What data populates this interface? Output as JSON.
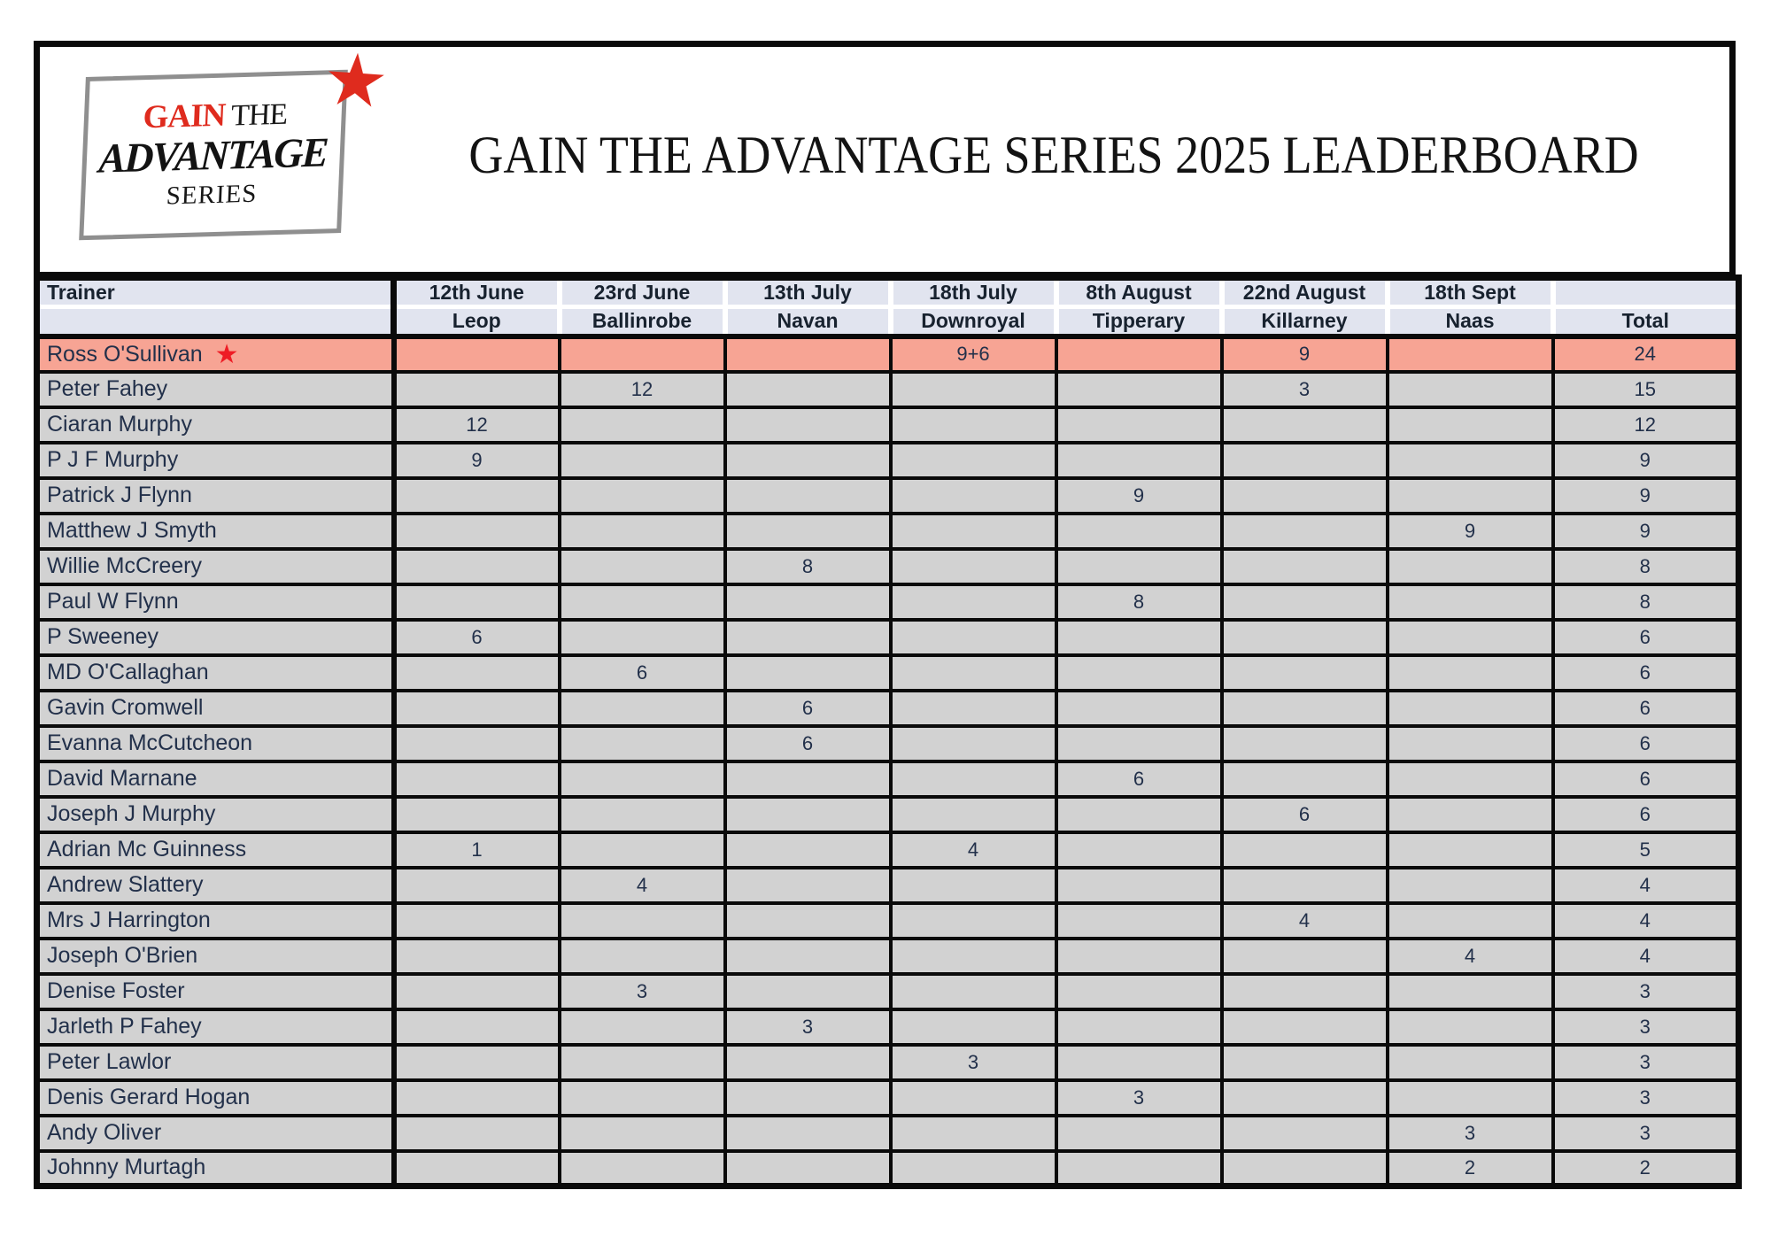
{
  "title": "GAIN THE ADVANTAGE SERIES 2025 LEADERBOARD",
  "logo": {
    "word1": "GAIN",
    "word2": " THE",
    "word3": "ADVANTAGE",
    "word4": "SERIES",
    "star": "★"
  },
  "colors": {
    "accent_red": "#df2b1e",
    "header_bg": "#e1e4ef",
    "row_bg": "#d2d2d2",
    "highlight_bg": "#f7a494",
    "border": "#0a0a0a",
    "text": "#22304a"
  },
  "table": {
    "trainer_header": "Trainer",
    "total_header": "Total",
    "races": [
      {
        "date": "12th June",
        "venue": "Leop"
      },
      {
        "date": "23rd June",
        "venue": "Ballinrobe"
      },
      {
        "date": "13th July",
        "venue": "Navan"
      },
      {
        "date": "18th July",
        "venue": "Downroyal"
      },
      {
        "date": "8th August",
        "venue": "Tipperary"
      },
      {
        "date": "22nd August",
        "venue": "Killarney"
      },
      {
        "date": "18th Sept",
        "venue": "Naas"
      }
    ],
    "rows": [
      {
        "name": "Ross O'Sullivan",
        "highlight": true,
        "star": "★",
        "points": [
          "",
          "",
          "",
          "9+6",
          "",
          "9",
          ""
        ],
        "total": "24"
      },
      {
        "name": "Peter Fahey",
        "highlight": false,
        "star": "",
        "points": [
          "",
          "12",
          "",
          "",
          "",
          "3",
          ""
        ],
        "total": "15"
      },
      {
        "name": "Ciaran Murphy",
        "highlight": false,
        "star": "",
        "points": [
          "12",
          "",
          "",
          "",
          "",
          "",
          ""
        ],
        "total": "12"
      },
      {
        "name": "P J F Murphy",
        "highlight": false,
        "star": "",
        "points": [
          "9",
          "",
          "",
          "",
          "",
          "",
          ""
        ],
        "total": "9"
      },
      {
        "name": "Patrick J Flynn",
        "highlight": false,
        "star": "",
        "points": [
          "",
          "",
          "",
          "",
          "9",
          "",
          ""
        ],
        "total": "9"
      },
      {
        "name": "Matthew J Smyth",
        "highlight": false,
        "star": "",
        "points": [
          "",
          "",
          "",
          "",
          "",
          "",
          "9"
        ],
        "total": "9"
      },
      {
        "name": "Willie McCreery",
        "highlight": false,
        "star": "",
        "points": [
          "",
          "",
          "8",
          "",
          "",
          "",
          ""
        ],
        "total": "8"
      },
      {
        "name": "Paul W Flynn",
        "highlight": false,
        "star": "",
        "points": [
          "",
          "",
          "",
          "",
          "8",
          "",
          ""
        ],
        "total": "8"
      },
      {
        "name": "P Sweeney",
        "highlight": false,
        "star": "",
        "points": [
          "6",
          "",
          "",
          "",
          "",
          "",
          ""
        ],
        "total": "6"
      },
      {
        "name": "MD O'Callaghan",
        "highlight": false,
        "star": "",
        "points": [
          "",
          "6",
          "",
          "",
          "",
          "",
          ""
        ],
        "total": "6"
      },
      {
        "name": "Gavin Cromwell",
        "highlight": false,
        "star": "",
        "points": [
          "",
          "",
          "6",
          "",
          "",
          "",
          ""
        ],
        "total": "6"
      },
      {
        "name": "Evanna McCutcheon",
        "highlight": false,
        "star": "",
        "points": [
          "",
          "",
          "6",
          "",
          "",
          "",
          ""
        ],
        "total": "6"
      },
      {
        "name": "David Marnane",
        "highlight": false,
        "star": "",
        "points": [
          "",
          "",
          "",
          "",
          "6",
          "",
          ""
        ],
        "total": "6"
      },
      {
        "name": "Joseph J Murphy",
        "highlight": false,
        "star": "",
        "points": [
          "",
          "",
          "",
          "",
          "",
          "6",
          ""
        ],
        "total": "6"
      },
      {
        "name": "Adrian Mc Guinness",
        "highlight": false,
        "star": "",
        "points": [
          "1",
          "",
          "",
          "4",
          "",
          "",
          ""
        ],
        "total": "5"
      },
      {
        "name": "Andrew Slattery",
        "highlight": false,
        "star": "",
        "points": [
          "",
          "4",
          "",
          "",
          "",
          "",
          ""
        ],
        "total": "4"
      },
      {
        "name": "Mrs J Harrington",
        "highlight": false,
        "star": "",
        "points": [
          "",
          "",
          "",
          "",
          "",
          "4",
          ""
        ],
        "total": "4"
      },
      {
        "name": "Joseph O'Brien",
        "highlight": false,
        "star": "",
        "points": [
          "",
          "",
          "",
          "",
          "",
          "",
          "4"
        ],
        "total": "4"
      },
      {
        "name": "Denise Foster",
        "highlight": false,
        "star": "",
        "points": [
          "",
          "3",
          "",
          "",
          "",
          "",
          ""
        ],
        "total": "3"
      },
      {
        "name": "Jarleth P Fahey",
        "highlight": false,
        "star": "",
        "points": [
          "",
          "",
          "3",
          "",
          "",
          "",
          ""
        ],
        "total": "3"
      },
      {
        "name": "Peter Lawlor",
        "highlight": false,
        "star": "",
        "points": [
          "",
          "",
          "",
          "3",
          "",
          "",
          ""
        ],
        "total": "3"
      },
      {
        "name": "Denis Gerard Hogan",
        "highlight": false,
        "star": "",
        "points": [
          "",
          "",
          "",
          "",
          "3",
          "",
          ""
        ],
        "total": "3"
      },
      {
        "name": "Andy Oliver",
        "highlight": false,
        "star": "",
        "points": [
          "",
          "",
          "",
          "",
          "",
          "",
          "3"
        ],
        "total": "3"
      },
      {
        "name": "Johnny Murtagh",
        "highlight": false,
        "star": "",
        "points": [
          "",
          "",
          "",
          "",
          "",
          "",
          "2"
        ],
        "total": "2"
      }
    ]
  }
}
